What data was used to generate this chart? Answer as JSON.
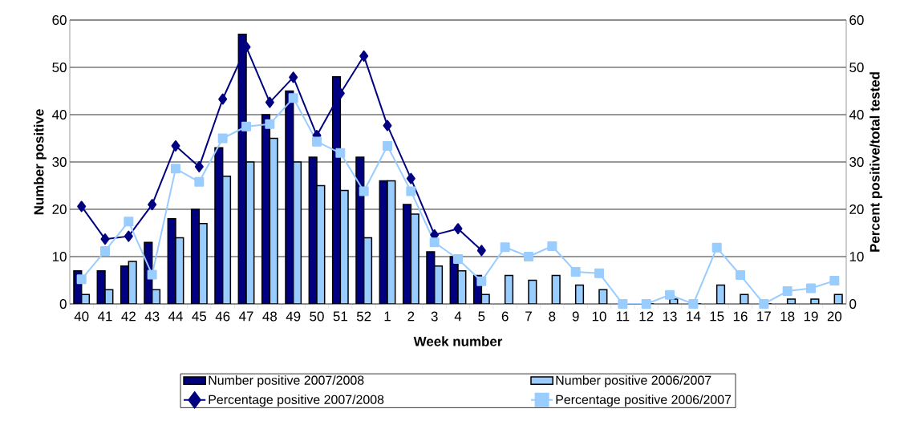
{
  "chart_data": {
    "type": "bar",
    "xlabel": "Week number",
    "ylabel": "Number positive",
    "y2label": "Percent positive/total tested",
    "categories": [
      "40",
      "41",
      "42",
      "43",
      "44",
      "45",
      "46",
      "47",
      "48",
      "49",
      "50",
      "51",
      "52",
      "1",
      "2",
      "3",
      "4",
      "5",
      "6",
      "7",
      "8",
      "9",
      "10",
      "11",
      "12",
      "13",
      "14",
      "15",
      "16",
      "17",
      "18",
      "19",
      "20"
    ],
    "series": [
      {
        "name": "Number positive 2007/2008",
        "color": "#000080",
        "values": [
          7,
          7,
          8,
          13,
          18,
          20,
          33,
          57,
          40,
          45,
          31,
          48,
          31,
          26,
          21,
          11,
          10,
          6,
          null,
          null,
          null,
          null,
          null,
          null,
          null,
          null,
          null,
          null,
          null,
          null,
          null,
          null,
          null
        ]
      },
      {
        "name": "Number positive 2006/2007",
        "color": "#99ccff",
        "values": [
          2,
          3,
          9,
          3,
          14,
          17,
          27,
          30,
          35,
          30,
          25,
          24,
          14,
          26,
          19,
          8,
          7,
          2,
          6,
          5,
          6,
          4,
          3,
          0,
          0,
          1,
          0,
          4,
          2,
          0,
          1,
          1,
          2
        ]
      },
      {
        "name": "Percentage positive 2007/2008",
        "type": "line",
        "axis": "y2",
        "marker": "diamond",
        "color": "#000080",
        "values": [
          20.6,
          13.7,
          14.3,
          21,
          33.4,
          29,
          43.3,
          54.3,
          42.6,
          47.9,
          35.6,
          44.5,
          52.4,
          37.7,
          26.5,
          14.6,
          15.9,
          11.3,
          null,
          null,
          null,
          null,
          null,
          null,
          null,
          null,
          null,
          null,
          null,
          null,
          null,
          null,
          null
        ]
      },
      {
        "name": "Percentage positive 2006/2007",
        "type": "line",
        "axis": "y2",
        "marker": "square",
        "color": "#99ccff",
        "values": [
          5.2,
          11.2,
          17.4,
          6.2,
          28.6,
          25.8,
          35,
          37.5,
          38,
          43.5,
          34.3,
          31.9,
          23.8,
          33.4,
          23.8,
          13,
          9.5,
          4.8,
          12,
          10,
          12.2,
          6.8,
          6.5,
          0,
          0,
          1.9,
          0,
          11.9,
          6.1,
          0,
          2.7,
          3.3,
          4.9
        ]
      }
    ],
    "ylim": [
      0,
      60
    ],
    "yticks": [
      0,
      10,
      20,
      30,
      40,
      50,
      60
    ],
    "y2lim": [
      0,
      60
    ],
    "y2ticks": [
      0,
      10,
      20,
      30,
      40,
      50,
      60
    ],
    "grid": "y",
    "legend": "bottom",
    "line_style": "solid"
  }
}
